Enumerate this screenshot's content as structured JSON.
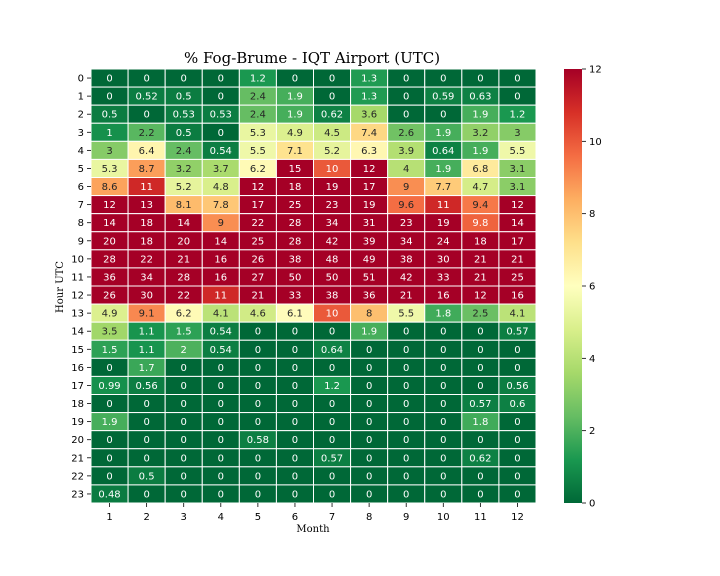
{
  "chart_data": {
    "type": "heatmap",
    "title": "% Fog-Brume - IQT Airport (UTC)",
    "xlabel": "Month",
    "ylabel": "Hour UTC",
    "x": [
      "1",
      "2",
      "3",
      "4",
      "5",
      "6",
      "7",
      "8",
      "9",
      "10",
      "11",
      "12"
    ],
    "y": [
      "0",
      "1",
      "2",
      "3",
      "4",
      "5",
      "6",
      "7",
      "8",
      "9",
      "10",
      "11",
      "12",
      "13",
      "14",
      "15",
      "16",
      "17",
      "18",
      "19",
      "20",
      "21",
      "22",
      "23"
    ],
    "values": [
      [
        0,
        0,
        0,
        0,
        1.2,
        0,
        0,
        1.3,
        0,
        0,
        0,
        0
      ],
      [
        0,
        0.52,
        0.5,
        0,
        2.4,
        1.9,
        0,
        1.3,
        0,
        0.59,
        0.63,
        0
      ],
      [
        0.5,
        0,
        0.53,
        0.53,
        2.4,
        1.9,
        0.62,
        3.6,
        0,
        0,
        1.9,
        1.2
      ],
      [
        1,
        2.2,
        0.5,
        0,
        5.3,
        4.9,
        4.5,
        7.4,
        2.6,
        1.9,
        3.2,
        3
      ],
      [
        3,
        6.4,
        2.4,
        0.54,
        5.5,
        7.1,
        5.2,
        6.3,
        3.9,
        0.64,
        1.9,
        5.5
      ],
      [
        5.3,
        8.7,
        3.2,
        3.7,
        6.2,
        15,
        10,
        12,
        4,
        1.9,
        6.8,
        3.1
      ],
      [
        8.6,
        11,
        5.2,
        4.8,
        12,
        18,
        19,
        17,
        9,
        7.7,
        4.7,
        3.1
      ],
      [
        12,
        13,
        8.1,
        7.8,
        17,
        25,
        23,
        19,
        9.6,
        11,
        9.4,
        12
      ],
      [
        14,
        18,
        14,
        9,
        22,
        28,
        34,
        31,
        23,
        19,
        9.8,
        14
      ],
      [
        20,
        18,
        20,
        14,
        25,
        28,
        42,
        39,
        34,
        24,
        18,
        17
      ],
      [
        28,
        22,
        21,
        16,
        26,
        38,
        48,
        49,
        38,
        30,
        21,
        21
      ],
      [
        36,
        34,
        28,
        16,
        27,
        50,
        50,
        51,
        42,
        33,
        21,
        25
      ],
      [
        26,
        30,
        22,
        11,
        21,
        33,
        38,
        36,
        21,
        16,
        12,
        16
      ],
      [
        4.9,
        9.1,
        6.2,
        4.1,
        4.6,
        6.1,
        10,
        8,
        5.5,
        1.8,
        2.5,
        4.1
      ],
      [
        3.5,
        1.1,
        1.5,
        0.54,
        0,
        0,
        0,
        1.9,
        0,
        0,
        0,
        0.57
      ],
      [
        1.5,
        1.1,
        2,
        0.54,
        0,
        0,
        0.64,
        0,
        0,
        0,
        0,
        0
      ],
      [
        0,
        1.7,
        0,
        0,
        0,
        0,
        0,
        0,
        0,
        0,
        0,
        0
      ],
      [
        0.99,
        0.56,
        0,
        0,
        0,
        0,
        1.2,
        0,
        0,
        0,
        0,
        0.56
      ],
      [
        0,
        0,
        0,
        0,
        0,
        0,
        0,
        0,
        0,
        0,
        0.57,
        0.6
      ],
      [
        1.9,
        0,
        0,
        0,
        0,
        0,
        0,
        0,
        0,
        0,
        1.8,
        0
      ],
      [
        0,
        0,
        0,
        0,
        0.58,
        0,
        0,
        0,
        0,
        0,
        0,
        0
      ],
      [
        0,
        0,
        0,
        0,
        0,
        0,
        0.57,
        0,
        0,
        0,
        0.62,
        0
      ],
      [
        0,
        0.5,
        0,
        0,
        0,
        0,
        0,
        0,
        0,
        0,
        0,
        0
      ],
      [
        0.48,
        0,
        0,
        0,
        0,
        0,
        0,
        0,
        0,
        0,
        0,
        0
      ]
    ],
    "colorbar": {
      "min": 0,
      "max": 12,
      "ticks": [
        "0",
        "2",
        "4",
        "6",
        "8",
        "10",
        "12"
      ],
      "colormap": "RdYlGn_r"
    },
    "grid": true,
    "annotations": "cell values shown"
  }
}
